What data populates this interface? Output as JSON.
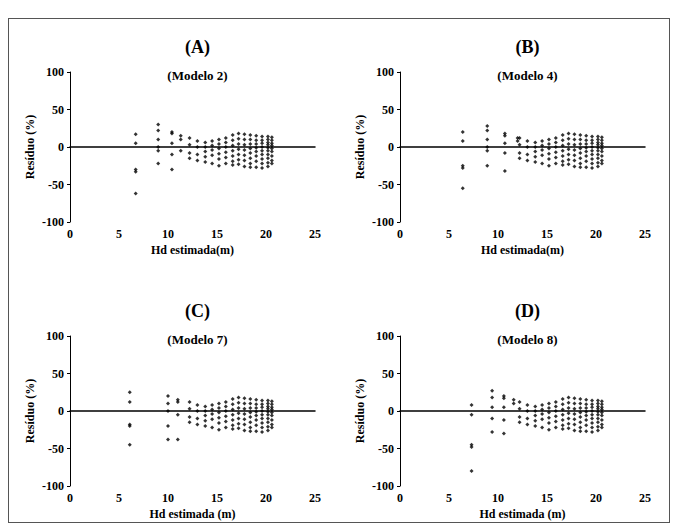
{
  "chart_data": [
    {
      "type": "scatter",
      "title": "(A)",
      "subtitle": "(Modelo 2)",
      "x_label": "Hd estimada(m)",
      "y_label": "Resíduo (%)",
      "color": "#000000",
      "marker": "diamond",
      "xlim": [
        0,
        25
      ],
      "xticks": [
        0,
        5,
        10,
        15,
        20,
        25
      ],
      "ylim": [
        -100,
        100
      ],
      "yticks": [
        -100,
        -50,
        0,
        50,
        100
      ],
      "grid": false,
      "x": [
        6.7,
        6.7,
        6.7,
        6.7,
        6.7,
        9,
        9,
        9,
        9,
        9,
        9,
        10.4,
        10.4,
        10.4,
        10.4,
        10.4,
        11.3,
        11.3,
        11.3,
        12.2,
        12.2,
        12.2,
        12.2,
        13,
        13,
        13,
        13,
        13.8,
        13.8,
        13.8,
        13.8,
        13.8,
        14.5,
        14.5,
        14.5,
        14.5,
        14.5,
        15.2,
        15.2,
        15.2,
        15.2,
        15.2,
        15.2,
        15.9,
        15.9,
        15.9,
        15.9,
        15.9,
        15.9,
        16.6,
        16.6,
        16.6,
        16.6,
        16.6,
        16.6,
        16.6,
        17.2,
        17.2,
        17.2,
        17.2,
        17.2,
        17.2,
        17.2,
        17.8,
        17.8,
        17.8,
        17.8,
        17.8,
        17.8,
        17.8,
        18.4,
        18.4,
        18.4,
        18.4,
        18.4,
        18.4,
        18.4,
        18.4,
        19,
        19,
        19,
        19,
        19,
        19,
        19,
        19,
        19.6,
        19.6,
        19.6,
        19.6,
        19.6,
        19.6,
        19.6,
        19.6,
        19.6,
        20.2,
        20.2,
        20.2,
        20.2,
        20.2,
        20.2,
        20.2,
        20.2,
        20.2,
        20.2,
        20.6,
        20.6,
        20.6,
        20.6,
        20.6,
        20.6,
        20.6,
        20.6,
        20.6
      ],
      "values": [
        17,
        5,
        -30,
        -33,
        -62,
        30,
        22,
        10,
        0,
        -5,
        -22,
        20,
        18,
        5,
        -10,
        -30,
        15,
        10,
        -5,
        12,
        3,
        -8,
        -15,
        8,
        0,
        -10,
        -18,
        6,
        0,
        -6,
        -13,
        -20,
        8,
        2,
        -4,
        -11,
        -22,
        10,
        4,
        -2,
        -9,
        -16,
        -25,
        12,
        6,
        0,
        -7,
        -14,
        -22,
        16,
        9,
        2,
        -5,
        -12,
        -19,
        -24,
        18,
        11,
        4,
        -3,
        -10,
        -17,
        -23,
        17,
        10,
        3,
        -4,
        -11,
        -18,
        -26,
        16,
        10,
        4,
        -2,
        -8,
        -15,
        -22,
        -27,
        15,
        9,
        4,
        -1,
        -6,
        -12,
        -19,
        -27,
        14,
        9,
        5,
        0,
        -5,
        -10,
        -16,
        -22,
        -28,
        14,
        10,
        6,
        3,
        -1,
        -5,
        -10,
        -15,
        -21,
        -26,
        13,
        9,
        5,
        2,
        -2,
        -6,
        -12,
        -18,
        -22
      ]
    },
    {
      "type": "scatter",
      "title": "(B)",
      "subtitle": "(Modelo 4)",
      "x_label": "Hd estimada(m)",
      "y_label": "Resíduo (%)",
      "color": "#000000",
      "marker": "diamond",
      "xlim": [
        0,
        25
      ],
      "xticks": [
        0,
        5,
        10,
        15,
        20,
        25
      ],
      "ylim": [
        -100,
        100
      ],
      "yticks": [
        -100,
        -50,
        0,
        50,
        100
      ],
      "grid": false,
      "x": [
        6.4,
        6.4,
        6.4,
        6.4,
        6.4,
        8.9,
        8.9,
        8.9,
        8.9,
        8.9,
        8.9,
        10.7,
        10.7,
        10.7,
        10.7,
        10.7,
        12,
        12,
        12.2,
        12.2,
        12.2,
        12.2,
        13,
        13,
        13,
        13,
        13.8,
        13.8,
        13.8,
        13.8,
        13.8,
        14.5,
        14.5,
        14.5,
        14.5,
        14.5,
        15.2,
        15.2,
        15.2,
        15.2,
        15.2,
        15.2,
        15.9,
        15.9,
        15.9,
        15.9,
        15.9,
        15.9,
        16.6,
        16.6,
        16.6,
        16.6,
        16.6,
        16.6,
        16.6,
        17.2,
        17.2,
        17.2,
        17.2,
        17.2,
        17.2,
        17.2,
        17.8,
        17.8,
        17.8,
        17.8,
        17.8,
        17.8,
        17.8,
        18.4,
        18.4,
        18.4,
        18.4,
        18.4,
        18.4,
        18.4,
        18.4,
        19,
        19,
        19,
        19,
        19,
        19,
        19,
        19,
        19.6,
        19.6,
        19.6,
        19.6,
        19.6,
        19.6,
        19.6,
        19.6,
        19.6,
        20.2,
        20.2,
        20.2,
        20.2,
        20.2,
        20.2,
        20.2,
        20.2,
        20.2,
        20.2,
        20.6,
        20.6,
        20.6,
        20.6,
        20.6,
        20.6,
        20.6,
        20.6,
        20.6
      ],
      "values": [
        20,
        8,
        -25,
        -28,
        -55,
        28,
        22,
        10,
        0,
        -5,
        -25,
        18,
        15,
        5,
        -8,
        -32,
        12,
        8,
        12,
        3,
        -8,
        -15,
        8,
        0,
        -10,
        -18,
        6,
        0,
        -6,
        -13,
        -20,
        8,
        2,
        -4,
        -11,
        -22,
        10,
        4,
        -2,
        -9,
        -16,
        -25,
        12,
        6,
        0,
        -7,
        -14,
        -22,
        16,
        9,
        2,
        -5,
        -12,
        -19,
        -24,
        18,
        11,
        4,
        -3,
        -10,
        -17,
        -23,
        17,
        10,
        3,
        -4,
        -11,
        -18,
        -26,
        16,
        10,
        4,
        -2,
        -8,
        -15,
        -22,
        -27,
        15,
        9,
        4,
        -1,
        -6,
        -12,
        -19,
        -27,
        14,
        9,
        5,
        0,
        -5,
        -10,
        -16,
        -22,
        -28,
        14,
        10,
        6,
        3,
        -1,
        -5,
        -10,
        -15,
        -21,
        -26,
        13,
        9,
        5,
        2,
        -2,
        -6,
        -12,
        -18,
        -22
      ]
    },
    {
      "type": "scatter",
      "title": "(C)",
      "subtitle": "(Modelo 7)",
      "x_label": "Hd estimada (m)",
      "y_label": "Resíduo (%)",
      "color": "#000000",
      "marker": "diamond",
      "xlim": [
        0,
        25
      ],
      "xticks": [
        0,
        5,
        10,
        15,
        20,
        25
      ],
      "ylim": [
        -100,
        100
      ],
      "yticks": [
        -100,
        -50,
        0,
        50,
        100
      ],
      "grid": false,
      "x": [
        6.1,
        6.1,
        6.1,
        6.1,
        6.1,
        10,
        10,
        10,
        10,
        10,
        11,
        11,
        11,
        11,
        12.2,
        12.2,
        12.2,
        12.2,
        13,
        13,
        13,
        13,
        13.8,
        13.8,
        13.8,
        13.8,
        13.8,
        14.5,
        14.5,
        14.5,
        14.5,
        14.5,
        15.2,
        15.2,
        15.2,
        15.2,
        15.2,
        15.2,
        15.9,
        15.9,
        15.9,
        15.9,
        15.9,
        15.9,
        16.6,
        16.6,
        16.6,
        16.6,
        16.6,
        16.6,
        16.6,
        17.2,
        17.2,
        17.2,
        17.2,
        17.2,
        17.2,
        17.2,
        17.8,
        17.8,
        17.8,
        17.8,
        17.8,
        17.8,
        17.8,
        18.4,
        18.4,
        18.4,
        18.4,
        18.4,
        18.4,
        18.4,
        18.4,
        19,
        19,
        19,
        19,
        19,
        19,
        19,
        19,
        19.6,
        19.6,
        19.6,
        19.6,
        19.6,
        19.6,
        19.6,
        19.6,
        19.6,
        20.2,
        20.2,
        20.2,
        20.2,
        20.2,
        20.2,
        20.2,
        20.2,
        20.2,
        20.2,
        20.6,
        20.6,
        20.6,
        20.6,
        20.6,
        20.6,
        20.6,
        20.6,
        20.6
      ],
      "values": [
        25,
        12,
        -18,
        -20,
        -45,
        20,
        10,
        0,
        -20,
        -38,
        15,
        12,
        -5,
        -38,
        12,
        3,
        -8,
        -15,
        8,
        0,
        -10,
        -18,
        6,
        0,
        -6,
        -13,
        -20,
        8,
        2,
        -4,
        -11,
        -22,
        10,
        4,
        -2,
        -9,
        -16,
        -25,
        12,
        6,
        0,
        -7,
        -14,
        -22,
        16,
        9,
        2,
        -5,
        -12,
        -19,
        -24,
        18,
        11,
        4,
        -3,
        -10,
        -17,
        -23,
        17,
        10,
        3,
        -4,
        -11,
        -18,
        -26,
        16,
        10,
        4,
        -2,
        -8,
        -15,
        -22,
        -27,
        15,
        9,
        4,
        -1,
        -6,
        -12,
        -19,
        -27,
        14,
        9,
        5,
        0,
        -5,
        -10,
        -16,
        -22,
        -28,
        14,
        10,
        6,
        3,
        -1,
        -5,
        -10,
        -15,
        -21,
        -26,
        13,
        9,
        5,
        2,
        -2,
        -6,
        -12,
        -18,
        -22
      ]
    },
    {
      "type": "scatter",
      "title": "(D)",
      "subtitle": "(Modelo 8)",
      "x_label": "Hd estimada (m)",
      "y_label": "Resíduo (%)",
      "color": "#000000",
      "marker": "diamond",
      "xlim": [
        0,
        25
      ],
      "xticks": [
        0,
        5,
        10,
        15,
        20,
        25
      ],
      "ylim": [
        -100,
        100
      ],
      "yticks": [
        -100,
        -50,
        0,
        50,
        100
      ],
      "grid": false,
      "x": [
        7.3,
        7.3,
        7.3,
        7.3,
        7.3,
        9.4,
        9.4,
        9.4,
        9.4,
        9.4,
        10.6,
        10.6,
        10.6,
        10.6,
        10.6,
        11.6,
        11.6,
        12.2,
        12.2,
        12.2,
        12.2,
        13,
        13,
        13,
        13,
        13.8,
        13.8,
        13.8,
        13.8,
        13.8,
        14.5,
        14.5,
        14.5,
        14.5,
        14.5,
        15.2,
        15.2,
        15.2,
        15.2,
        15.2,
        15.2,
        15.9,
        15.9,
        15.9,
        15.9,
        15.9,
        15.9,
        16.6,
        16.6,
        16.6,
        16.6,
        16.6,
        16.6,
        16.6,
        17.2,
        17.2,
        17.2,
        17.2,
        17.2,
        17.2,
        17.2,
        17.8,
        17.8,
        17.8,
        17.8,
        17.8,
        17.8,
        17.8,
        18.4,
        18.4,
        18.4,
        18.4,
        18.4,
        18.4,
        18.4,
        18.4,
        19,
        19,
        19,
        19,
        19,
        19,
        19,
        19,
        19.6,
        19.6,
        19.6,
        19.6,
        19.6,
        19.6,
        19.6,
        19.6,
        19.6,
        20.2,
        20.2,
        20.2,
        20.2,
        20.2,
        20.2,
        20.2,
        20.2,
        20.2,
        20.2,
        20.6,
        20.6,
        20.6,
        20.6,
        20.6,
        20.6,
        20.6,
        20.6,
        20.6
      ],
      "values": [
        8,
        -5,
        -45,
        -48,
        -80,
        27,
        18,
        5,
        -10,
        -28,
        20,
        17,
        5,
        -12,
        -30,
        15,
        10,
        12,
        3,
        -8,
        -15,
        8,
        0,
        -10,
        -18,
        6,
        0,
        -6,
        -13,
        -20,
        8,
        2,
        -4,
        -11,
        -22,
        10,
        4,
        -2,
        -9,
        -16,
        -25,
        12,
        6,
        0,
        -7,
        -14,
        -22,
        16,
        9,
        2,
        -5,
        -12,
        -19,
        -24,
        18,
        11,
        4,
        -3,
        -10,
        -17,
        -23,
        17,
        10,
        3,
        -4,
        -11,
        -18,
        -26,
        16,
        10,
        4,
        -2,
        -8,
        -15,
        -22,
        -27,
        15,
        9,
        4,
        -1,
        -6,
        -12,
        -19,
        -27,
        14,
        9,
        5,
        0,
        -5,
        -10,
        -16,
        -22,
        -28,
        14,
        10,
        6,
        3,
        -1,
        -5,
        -10,
        -15,
        -21,
        -26,
        13,
        9,
        5,
        2,
        -2,
        -6,
        -12,
        -18,
        -22
      ]
    }
  ]
}
